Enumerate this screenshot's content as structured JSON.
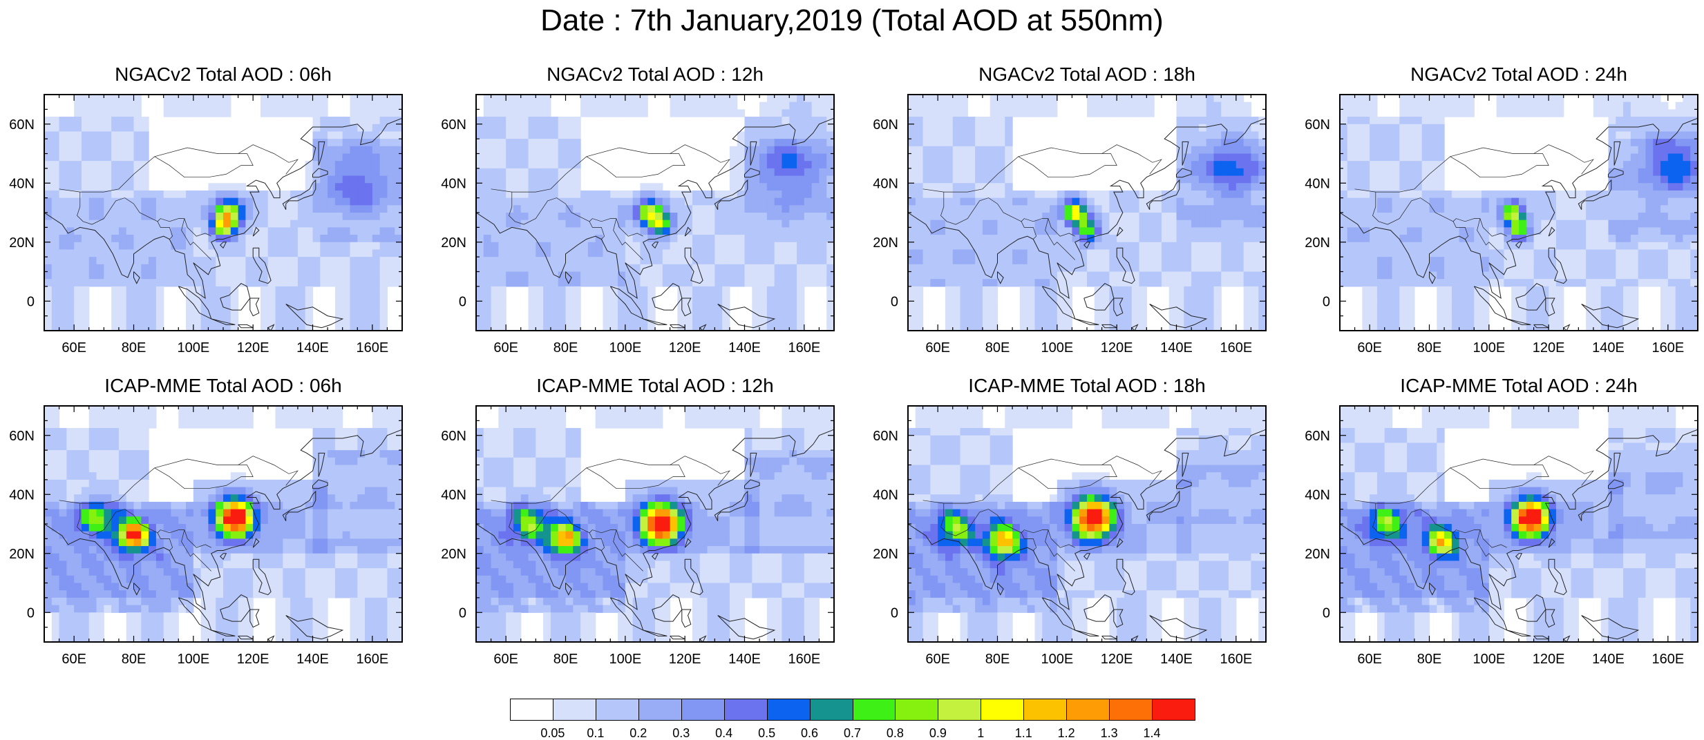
{
  "title": "Date : 7th January,2019 (Total AOD at 550nm)",
  "panels": [
    {
      "title": "NGACv2 Total AOD : 06h",
      "model": "NGACv2",
      "hour": "06h",
      "hotspots": [
        {
          "lon": 112,
          "lat": 30,
          "aod": 0.9,
          "spread": 1.0
        },
        {
          "lon": 110,
          "lat": 25,
          "aod": 0.8,
          "spread": 0.8
        },
        {
          "lon": 155,
          "lat": 40,
          "aod": 0.3,
          "spread": 2.0
        }
      ]
    },
    {
      "title": "NGACv2 Total AOD : 12h",
      "model": "NGACv2",
      "hour": "12h",
      "hotspots": [
        {
          "lon": 108,
          "lat": 30,
          "aod": 0.9,
          "spread": 0.9
        },
        {
          "lon": 112,
          "lat": 26,
          "aod": 0.7,
          "spread": 0.8
        },
        {
          "lon": 155,
          "lat": 45,
          "aod": 0.3,
          "spread": 2.2
        }
      ]
    },
    {
      "title": "NGACv2 Total AOD : 18h",
      "model": "NGACv2",
      "hour": "18h",
      "hotspots": [
        {
          "lon": 106,
          "lat": 30,
          "aod": 1.0,
          "spread": 0.8
        },
        {
          "lon": 110,
          "lat": 24,
          "aod": 0.7,
          "spread": 0.8
        },
        {
          "lon": 158,
          "lat": 45,
          "aod": 0.35,
          "spread": 2.0
        }
      ]
    },
    {
      "title": "NGACv2 Total AOD : 24h",
      "model": "NGACv2",
      "hour": "24h",
      "hotspots": [
        {
          "lon": 108,
          "lat": 30,
          "aod": 0.9,
          "spread": 0.8
        },
        {
          "lon": 110,
          "lat": 24,
          "aod": 0.7,
          "spread": 0.7
        },
        {
          "lon": 162,
          "lat": 47,
          "aod": 0.4,
          "spread": 2.0
        }
      ]
    },
    {
      "title": "ICAP-MME Total AOD : 06h",
      "model": "ICAP-MME",
      "hour": "06h",
      "hotspots": [
        {
          "lon": 114,
          "lat": 32,
          "aod": 1.45,
          "spread": 1.3
        },
        {
          "lon": 80,
          "lat": 26,
          "aod": 1.2,
          "spread": 1.0
        },
        {
          "lon": 68,
          "lat": 32,
          "aod": 0.6,
          "spread": 1.2
        }
      ]
    },
    {
      "title": "ICAP-MME Total AOD : 12h",
      "model": "ICAP-MME",
      "hour": "12h",
      "hotspots": [
        {
          "lon": 112,
          "lat": 30,
          "aod": 1.45,
          "spread": 1.4
        },
        {
          "lon": 80,
          "lat": 25,
          "aod": 1.0,
          "spread": 1.0
        },
        {
          "lon": 68,
          "lat": 30,
          "aod": 0.6,
          "spread": 1.2
        }
      ]
    },
    {
      "title": "ICAP-MME Total AOD : 18h",
      "model": "ICAP-MME",
      "hour": "18h",
      "hotspots": [
        {
          "lon": 112,
          "lat": 32,
          "aod": 1.45,
          "spread": 1.4
        },
        {
          "lon": 82,
          "lat": 24,
          "aod": 0.95,
          "spread": 1.1
        },
        {
          "lon": 66,
          "lat": 28,
          "aod": 0.6,
          "spread": 1.2
        }
      ]
    },
    {
      "title": "ICAP-MME Total AOD : 24h",
      "model": "ICAP-MME",
      "hour": "24h",
      "hotspots": [
        {
          "lon": 114,
          "lat": 32,
          "aod": 1.45,
          "spread": 1.3
        },
        {
          "lon": 84,
          "lat": 24,
          "aod": 0.9,
          "spread": 1.0
        },
        {
          "lon": 66,
          "lat": 30,
          "aod": 0.6,
          "spread": 1.2
        }
      ]
    }
  ],
  "axes": {
    "lon_range": [
      50,
      170
    ],
    "lat_range": [
      -10,
      70
    ],
    "x_ticks": [
      "60E",
      "80E",
      "100E",
      "120E",
      "140E",
      "160E"
    ],
    "x_tick_values": [
      60,
      80,
      100,
      120,
      140,
      160
    ],
    "y_ticks": [
      "60N",
      "40N",
      "20N",
      "0"
    ],
    "y_tick_values": [
      60,
      40,
      20,
      0
    ]
  },
  "colorbar": {
    "labels": [
      "0.05",
      "0.1",
      "0.2",
      "0.3",
      "0.4",
      "0.5",
      "0.6",
      "0.7",
      "0.8",
      "0.9",
      "1",
      "1.1",
      "1.2",
      "1.3",
      "1.4"
    ],
    "colors": [
      "#ffffff",
      "#d6e0fb",
      "#b5c6fa",
      "#98adf6",
      "#8197f3",
      "#6b73ef",
      "#0b63f0",
      "#14938f",
      "#3ef015",
      "#86f00e",
      "#c4f03e",
      "#ffff00",
      "#fcc200",
      "#fd9c04",
      "#fd7008",
      "#fa1c0e"
    ]
  }
}
